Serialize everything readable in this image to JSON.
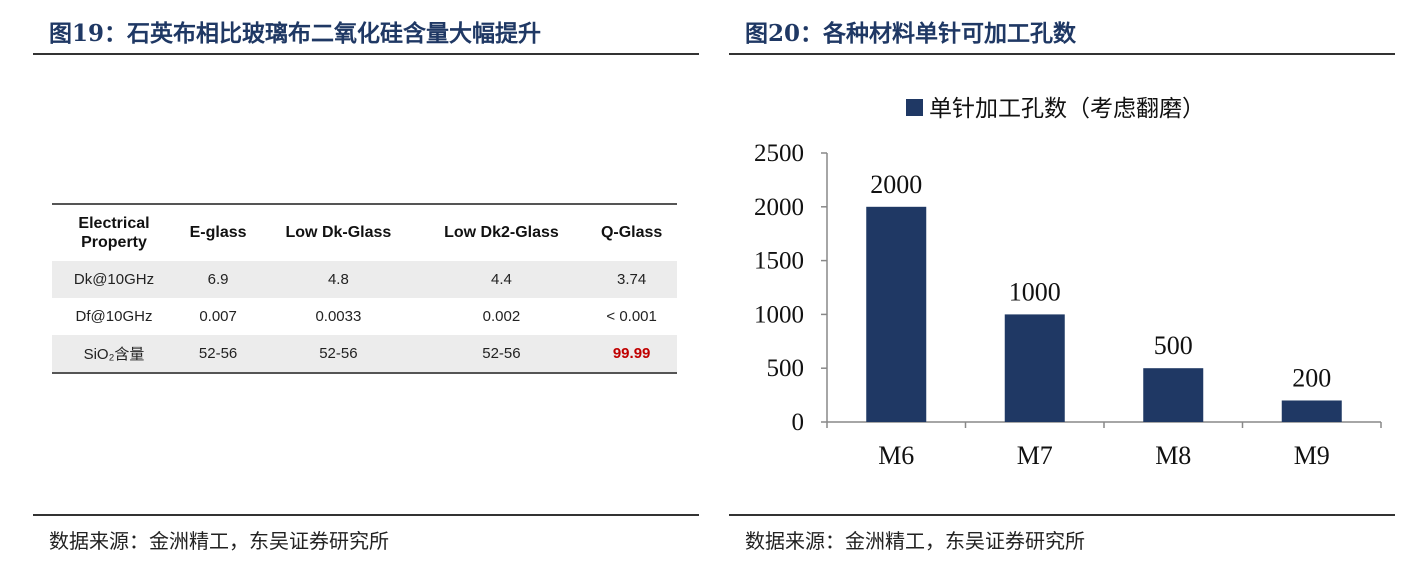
{
  "left": {
    "title": "图19：石英布相比玻璃布二氧化硅含量大幅提升",
    "table": {
      "header": [
        "Electrical\nProperty",
        "E-glass",
        "Low Dk-Glass",
        "Low Dk2-Glass",
        "Q-Glass"
      ],
      "rows": [
        [
          "Dk@10GHz",
          "6.9",
          "4.8",
          "4.4",
          "3.74"
        ],
        [
          "Df@10GHz",
          "0.007",
          "0.0033",
          "0.002",
          "< 0.001"
        ],
        [
          "SiO₂含量",
          "52-56",
          "52-56",
          "52-56",
          "99.99"
        ]
      ],
      "highlight_color": "#c00000"
    },
    "source": "数据来源：金洲精工，东吴证券研究所"
  },
  "right": {
    "title": "图20：各种材料单针可加工孔数",
    "source": "数据来源：金洲精工，东吴证券研究所"
  },
  "chart_data": {
    "type": "bar",
    "categories": [
      "M6",
      "M7",
      "M8",
      "M9"
    ],
    "series": [
      {
        "name": "单针加工孔数（考虑翻磨）",
        "values": [
          2000,
          1000,
          500,
          200
        ],
        "color": "#1f3864"
      }
    ],
    "data_labels": [
      "2000",
      "1000",
      "500",
      "200"
    ],
    "ylim": [
      0,
      2500
    ],
    "yticks": [
      0,
      500,
      1000,
      1500,
      2000,
      2500
    ],
    "legend": "top-center",
    "grid": false,
    "title": "",
    "xlabel": "",
    "ylabel": ""
  }
}
